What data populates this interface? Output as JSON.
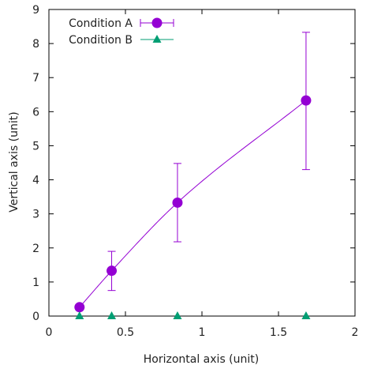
{
  "chart_data": {
    "type": "scatter",
    "xlabel": "Horizontal axis (unit)",
    "ylabel": "Vertical axis (unit)",
    "xlim": [
      0,
      2
    ],
    "ylim": [
      0,
      9
    ],
    "xticks": [
      0,
      0.5,
      1,
      1.5,
      2
    ],
    "xtick_labels": [
      "0",
      "0.5",
      "1",
      "1.5",
      "2"
    ],
    "yticks": [
      0,
      1,
      2,
      3,
      4,
      5,
      6,
      7,
      8,
      9
    ],
    "ytick_labels": [
      "0",
      "1",
      "2",
      "3",
      "4",
      "5",
      "6",
      "7",
      "8",
      "9"
    ],
    "grid": false,
    "legend_position": "top-left",
    "series": [
      {
        "name": "Condition A",
        "color": "#9400d3",
        "marker": "circle",
        "x": [
          0.2,
          0.41,
          0.84,
          1.68
        ],
        "y": [
          0.26,
          1.33,
          3.33,
          6.33
        ],
        "yerr_low": [
          0.26,
          0.75,
          2.18,
          4.3
        ],
        "yerr_high": [
          0.26,
          1.9,
          4.48,
          8.33
        ],
        "fit_line": true
      },
      {
        "name": "Condition B",
        "color": "#009e73",
        "marker": "triangle",
        "x": [
          0.2,
          0.41,
          0.84,
          1.68
        ],
        "y": [
          0,
          0,
          0,
          0
        ]
      }
    ]
  }
}
